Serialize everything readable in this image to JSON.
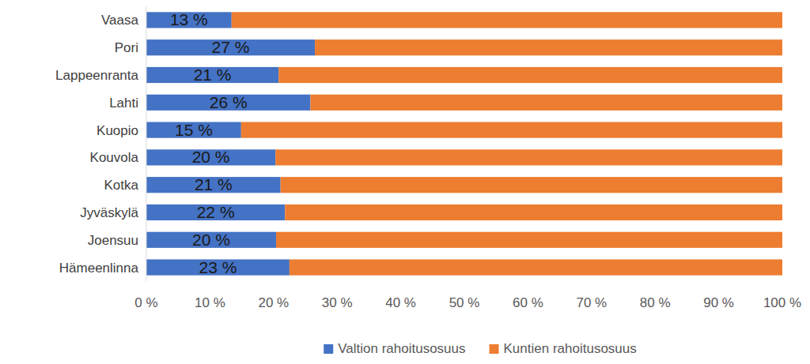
{
  "chart_data": {
    "type": "bar",
    "orientation": "horizontal",
    "stacked": true,
    "data_labels": true,
    "grid": false,
    "legend": "bottom",
    "categories": [
      "Vaasa",
      "Pori",
      "Lappeenranta",
      "Lahti",
      "Kuopio",
      "Kouvola",
      "Kotka",
      "Jyväskylä",
      "Joensuu",
      "Hämeenlinna"
    ],
    "series": [
      {
        "name": "Valtion rahoitusosuus",
        "color": "#4472c4",
        "values": [
          13.4,
          26.5,
          20.8,
          25.8,
          14.9,
          20.3,
          21.1,
          21.8,
          20.4,
          22.5
        ],
        "value_labels": [
          "13 %",
          "27 %",
          "21 %",
          "26 %",
          "15 %",
          "20 %",
          "21 %",
          "22 %",
          "20 %",
          "23 %"
        ]
      },
      {
        "name": "Kuntien rahoitusosuus",
        "color": "#ed7d31",
        "values": [
          86.6,
          73.5,
          79.2,
          74.2,
          85.1,
          79.7,
          78.9,
          78.2,
          79.6,
          77.5
        ]
      }
    ],
    "xlim": [
      0,
      100
    ],
    "xticks": [
      {
        "value": 0,
        "label": "0 %"
      },
      {
        "value": 10,
        "label": "10 %"
      },
      {
        "value": 20,
        "label": "20 %"
      },
      {
        "value": 30,
        "label": "30 %"
      },
      {
        "value": 40,
        "label": "40 %"
      },
      {
        "value": 50,
        "label": "50 %"
      },
      {
        "value": 60,
        "label": "60 %"
      },
      {
        "value": 70,
        "label": "70 %"
      },
      {
        "value": 80,
        "label": "80 %"
      },
      {
        "value": 90,
        "label": "90 %"
      },
      {
        "value": 100,
        "label": "100 %"
      }
    ]
  }
}
